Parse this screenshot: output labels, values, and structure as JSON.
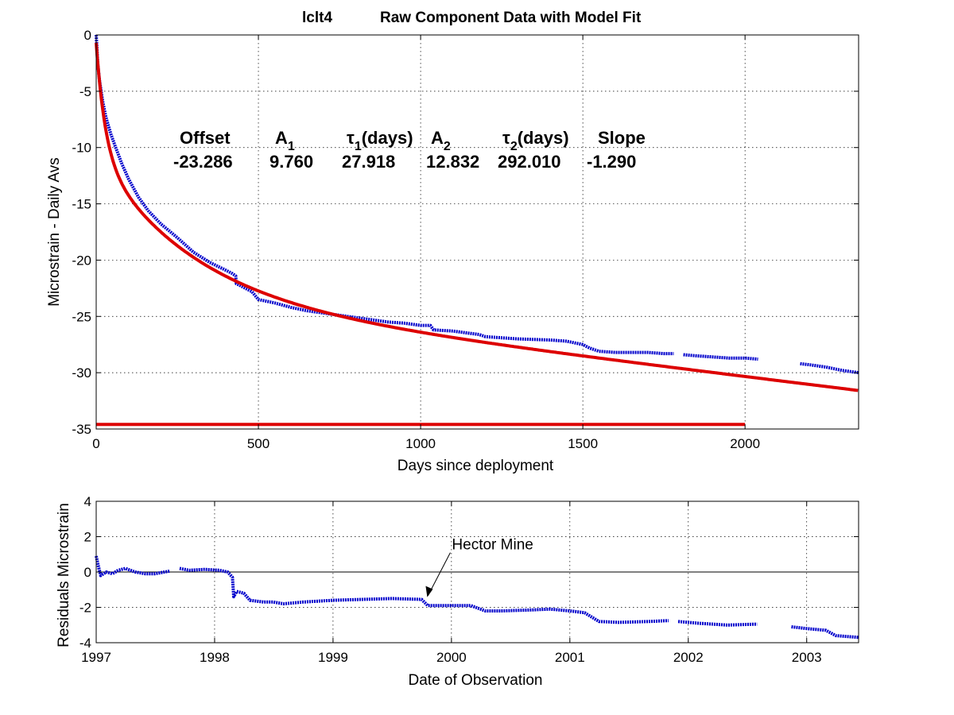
{
  "chart_data": [
    {
      "type": "line",
      "title_left": "lclt4",
      "title": "Raw Component Data with Model Fit",
      "xlabel": "Days since deployment",
      "ylabel": "Microstrain - Daily Avs",
      "xlim": [
        0,
        2350
      ],
      "ylim": [
        -35,
        0
      ],
      "xticks": [
        0,
        500,
        1000,
        1500,
        2000
      ],
      "yticks": [
        0,
        -5,
        -10,
        -15,
        -20,
        -25,
        -30,
        -35
      ],
      "grid": true,
      "fit_params": {
        "offset_label": "Offset",
        "offset_value": "-23.286",
        "a1_label": "A",
        "a1_sub": "1",
        "a1_value": "9.760",
        "tau1_label_sym": "τ",
        "tau1_sub": "1",
        "tau1_label_rest": "(days)",
        "tau1_value": "27.918",
        "a2_label": "A",
        "a2_sub": "2",
        "a2_value": "12.832",
        "tau2_label_sym": "τ",
        "tau2_sub": "2",
        "tau2_label_rest": "(days)",
        "tau2_value": "292.010",
        "slope_label": "Slope",
        "slope_value": "-1.290"
      },
      "series": [
        {
          "color": "#0000cc",
          "marker": "dot",
          "segments": [
            [
              [
                0,
                0
              ],
              [
                2,
                -1
              ],
              [
                5,
                -2.6
              ],
              [
                10,
                -4
              ],
              [
                20,
                -5.9
              ],
              [
                30,
                -7.3
              ],
              [
                45,
                -8.8
              ],
              [
                60,
                -10
              ],
              [
                80,
                -11.5
              ],
              [
                100,
                -12.8
              ],
              [
                130,
                -14.4
              ],
              [
                160,
                -15.6
              ],
              [
                200,
                -16.8
              ],
              [
                250,
                -18
              ],
              [
                300,
                -19.3
              ],
              [
                350,
                -20.2
              ],
              [
                400,
                -20.9
              ],
              [
                420,
                -21.2
              ],
              [
                430,
                -21.4
              ],
              [
                432,
                -22.1
              ],
              [
                440,
                -22.2
              ],
              [
                460,
                -22.5
              ],
              [
                480,
                -22.8
              ],
              [
                500,
                -23.5
              ],
              [
                550,
                -23.8
              ],
              [
                600,
                -24.2
              ],
              [
                650,
                -24.5
              ],
              [
                700,
                -24.7
              ],
              [
                750,
                -24.9
              ],
              [
                800,
                -25.1
              ],
              [
                850,
                -25.3
              ],
              [
                900,
                -25.5
              ],
              [
                950,
                -25.6
              ],
              [
                1000,
                -25.8
              ],
              [
                1030,
                -25.8
              ],
              [
                1040,
                -26.2
              ],
              [
                1100,
                -26.3
              ],
              [
                1150,
                -26.5
              ],
              [
                1180,
                -26.6
              ],
              [
                1200,
                -26.8
              ],
              [
                1250,
                -26.9
              ],
              [
                1300,
                -27
              ],
              [
                1400,
                -27.1
              ],
              [
                1450,
                -27.2
              ],
              [
                1500,
                -27.5
              ],
              [
                1520,
                -27.8
              ],
              [
                1550,
                -28.1
              ],
              [
                1600,
                -28.2
              ],
              [
                1650,
                -28.2
              ],
              [
                1700,
                -28.2
              ],
              [
                1750,
                -28.3
              ],
              [
                1780,
                -28.3
              ]
            ],
            [
              [
                1810,
                -28.4
              ],
              [
                1850,
                -28.5
              ],
              [
                1900,
                -28.6
              ],
              [
                1950,
                -28.7
              ],
              [
                2000,
                -28.7
              ],
              [
                2040,
                -28.8
              ]
            ],
            [
              [
                2170,
                -29.2
              ],
              [
                2200,
                -29.3
              ],
              [
                2250,
                -29.5
              ],
              [
                2300,
                -29.8
              ],
              [
                2350,
                -30
              ]
            ]
          ]
        },
        {
          "color": "#dd0000",
          "marker": "none",
          "model": "fit",
          "x_range": [
            0,
            2350
          ]
        },
        {
          "color": "#dd0000",
          "marker": "none",
          "segments": [
            [
              [
                0,
                -34.6
              ],
              [
                2000,
                -34.6
              ]
            ]
          ]
        }
      ]
    },
    {
      "type": "line",
      "title": "",
      "xlabel": "Date of Observation",
      "ylabel": "Residuals Microstrain",
      "xlim": [
        "1997-01-01",
        "2003-06-10"
      ],
      "ylim": [
        -4,
        4
      ],
      "xticks": [
        "1997",
        "1998",
        "1999",
        "2000",
        "2001",
        "2002",
        "2003"
      ],
      "yticks": [
        4,
        2,
        0,
        -2,
        -4
      ],
      "grid": true,
      "zero_line": true,
      "annotation": {
        "text": "Hector Mine",
        "x": "1999-10-16",
        "y": -1.6
      },
      "series": [
        {
          "color": "#0000cc",
          "marker": "dot",
          "segments": [
            [
              [
                "1997-01-01",
                0.9
              ],
              [
                "1997-01-08",
                0.3
              ],
              [
                "1997-01-15",
                -0.2
              ],
              [
                "1997-02-01",
                0
              ],
              [
                "1997-02-20",
                -0.1
              ],
              [
                "1997-03-10",
                0.1
              ],
              [
                "1997-04-01",
                0.2
              ],
              [
                "1997-05-01",
                0
              ],
              [
                "1997-06-01",
                -0.1
              ],
              [
                "1997-07-01",
                -0.1
              ],
              [
                "1997-08-15",
                0.05
              ]
            ],
            [
              [
                "1997-09-15",
                0.2
              ],
              [
                "1997-10-15",
                0.1
              ],
              [
                "1997-12-01",
                0.15
              ],
              [
                "1998-01-15",
                0.1
              ],
              [
                "1998-02-10",
                0
              ],
              [
                "1998-02-25",
                -0.3
              ],
              [
                "1998-03-01",
                -1.4
              ],
              [
                "1998-03-10",
                -1.1
              ],
              [
                "1998-04-01",
                -1.2
              ],
              [
                "1998-04-20",
                -1.6
              ],
              [
                "1998-06-01",
                -1.7
              ],
              [
                "1998-07-01",
                -1.7
              ],
              [
                "1998-08-01",
                -1.8
              ],
              [
                "1998-10-01",
                -1.7
              ],
              [
                "1999-01-01",
                -1.6
              ],
              [
                "1999-04-01",
                -1.55
              ],
              [
                "1999-07-01",
                -1.5
              ],
              [
                "1999-10-01",
                -1.55
              ],
              [
                "1999-10-20",
                -1.9
              ],
              [
                "2000-01-01",
                -1.9
              ],
              [
                "2000-03-01",
                -1.9
              ],
              [
                "2000-04-15",
                -2.2
              ],
              [
                "2000-06-01",
                -2.2
              ],
              [
                "2000-09-01",
                -2.15
              ],
              [
                "2000-11-01",
                -2.1
              ],
              [
                "2001-01-01",
                -2.2
              ],
              [
                "2001-02-15",
                -2.3
              ],
              [
                "2001-04-01",
                -2.8
              ],
              [
                "2001-06-01",
                -2.85
              ],
              [
                "2001-09-01",
                -2.8
              ],
              [
                "2001-11-01",
                -2.75
              ]
            ],
            [
              [
                "2001-12-01",
                -2.8
              ],
              [
                "2002-02-01",
                -2.9
              ],
              [
                "2002-05-01",
                -3
              ],
              [
                "2002-08-01",
                -2.95
              ]
            ],
            [
              [
                "2002-11-15",
                -3.1
              ],
              [
                "2003-01-01",
                -3.2
              ],
              [
                "2003-03-01",
                -3.3
              ],
              [
                "2003-04-01",
                -3.6
              ],
              [
                "2003-06-10",
                -3.7
              ]
            ]
          ]
        }
      ]
    }
  ]
}
